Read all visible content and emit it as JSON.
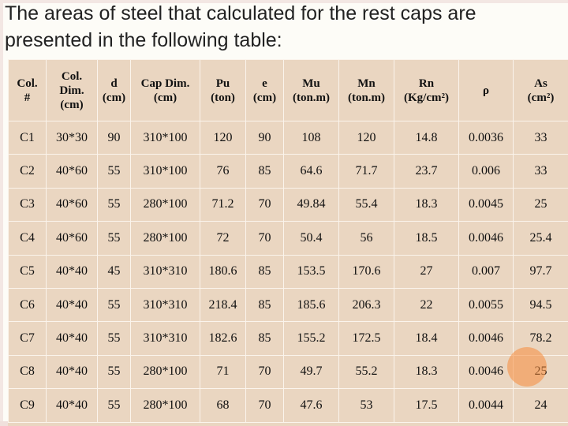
{
  "title": "The areas of steel that calculated for the rest caps are presented in the following table:",
  "table": {
    "headers": [
      [
        "Col.",
        "#"
      ],
      [
        "Col.",
        "Dim.",
        "(cm)"
      ],
      [
        "d",
        "(cm)"
      ],
      [
        "Cap Dim.",
        "(cm)"
      ],
      [
        "Pu",
        "(ton)"
      ],
      [
        "e",
        "(cm)"
      ],
      [
        "Mu",
        "(ton.m)"
      ],
      [
        "Mn",
        "(ton.m)"
      ],
      [
        "Rn",
        "(Kg/cm²)"
      ],
      [
        "ρ"
      ],
      [
        "As",
        "(cm²)"
      ]
    ],
    "rows": [
      [
        "C1",
        "30*30",
        "90",
        "310*100",
        "120",
        "90",
        "108",
        "120",
        "14.8",
        "0.0036",
        "33"
      ],
      [
        "C2",
        "40*60",
        "55",
        "310*100",
        "76",
        "85",
        "64.6",
        "71.7",
        "23.7",
        "0.006",
        "33"
      ],
      [
        "C3",
        "40*60",
        "55",
        "280*100",
        "71.2",
        "70",
        "49.84",
        "55.4",
        "18.3",
        "0.0045",
        "25"
      ],
      [
        "C4",
        "40*60",
        "55",
        "280*100",
        "72",
        "70",
        "50.4",
        "56",
        "18.5",
        "0.0046",
        "25.4"
      ],
      [
        "C5",
        "40*40",
        "45",
        "310*310",
        "180.6",
        "85",
        "153.5",
        "170.6",
        "27",
        "0.007",
        "97.7"
      ],
      [
        "C6",
        "40*40",
        "55",
        "310*310",
        "218.4",
        "85",
        "185.6",
        "206.3",
        "22",
        "0.0055",
        "94.5"
      ],
      [
        "C7",
        "40*40",
        "55",
        "310*310",
        "182.6",
        "85",
        "155.2",
        "172.5",
        "18.4",
        "0.0046",
        "78.2"
      ],
      [
        "C8",
        "40*40",
        "55",
        "280*100",
        "71",
        "70",
        "49.7",
        "55.2",
        "18.3",
        "0.0046",
        "25"
      ],
      [
        "C9",
        "40*40",
        "55",
        "280*100",
        "68",
        "70",
        "47.6",
        "53",
        "17.5",
        "0.0044",
        "24"
      ]
    ]
  },
  "colors": {
    "table_bg": "#ead6c1",
    "grid_lines": "#fbf4ec",
    "highlight": "#f68c3c"
  }
}
